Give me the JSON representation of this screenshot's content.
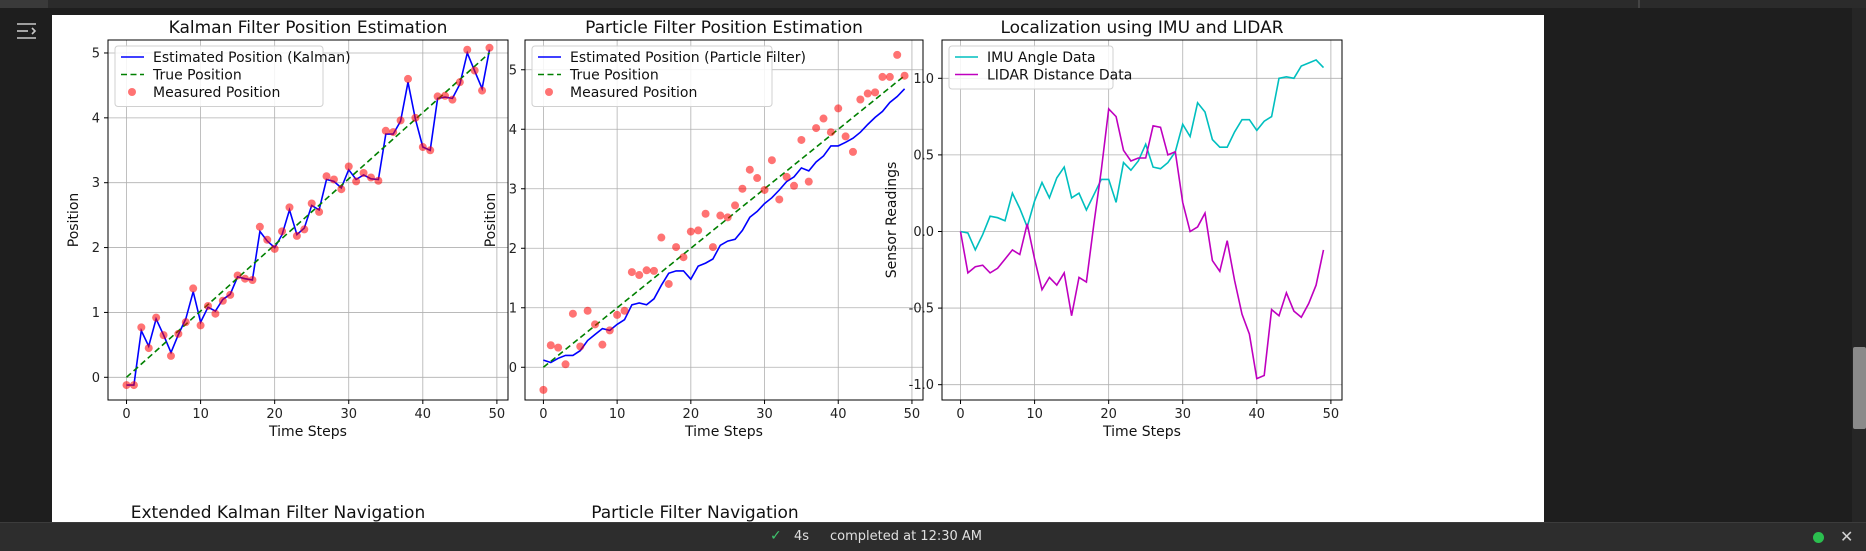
{
  "status": {
    "check_icon": "check-icon",
    "duration": "4s",
    "message": "completed at 12:30 AM",
    "dot_color": "#2bbf4f"
  },
  "colors": {
    "kalman": "#0000ff",
    "true": "#008000",
    "measured": "#ff0000",
    "imu": "#00bfbf",
    "lidar": "#bf00bf"
  },
  "next_titles": [
    "Extended Kalman Filter Navigation",
    "Particle Filter Navigation"
  ],
  "chart_data": [
    {
      "type": "line",
      "title": "Kalman Filter Position Estimation",
      "xlabel": "Time Steps",
      "ylabel": "Position",
      "xlim": [
        -2.5,
        51.5
      ],
      "ylim": [
        -0.35,
        5.2
      ],
      "xticks": [
        0,
        10,
        20,
        30,
        40,
        50
      ],
      "yticks": [
        0,
        1,
        2,
        3,
        4,
        5
      ],
      "grid": true,
      "legend": "top-left",
      "series": [
        {
          "name": "Estimated Position (Kalman)",
          "style": "solid",
          "color": "#0000ff",
          "x": [
            0,
            1,
            2,
            3,
            4,
            5,
            6,
            7,
            8,
            9,
            10,
            11,
            12,
            13,
            14,
            15,
            16,
            17,
            18,
            19,
            20,
            21,
            22,
            23,
            24,
            25,
            26,
            27,
            28,
            29,
            30,
            31,
            32,
            33,
            34,
            35,
            36,
            37,
            38,
            39,
            40,
            41,
            42,
            43,
            44,
            45,
            46,
            47,
            48,
            49
          ],
          "y": [
            -0.12,
            -0.12,
            0.72,
            0.48,
            0.9,
            0.65,
            0.38,
            0.66,
            0.9,
            1.32,
            0.85,
            1.08,
            1.02,
            1.2,
            1.28,
            1.55,
            1.52,
            1.5,
            2.25,
            2.1,
            2.0,
            2.2,
            2.58,
            2.2,
            2.3,
            2.65,
            2.58,
            3.05,
            3.02,
            2.92,
            3.2,
            3.05,
            3.12,
            3.06,
            3.05,
            3.75,
            3.75,
            3.95,
            4.55,
            3.98,
            3.55,
            3.5,
            4.3,
            4.32,
            4.3,
            4.52,
            5.0,
            4.72,
            4.45,
            5.05
          ]
        },
        {
          "name": "True Position",
          "style": "dashed",
          "color": "#008000",
          "x": [
            0,
            49
          ],
          "y": [
            0.0,
            5.0
          ]
        },
        {
          "name": "Measured Position",
          "style": "markers",
          "color": "#ff0000",
          "x": [
            0,
            1,
            2,
            3,
            4,
            5,
            6,
            7,
            8,
            9,
            10,
            11,
            12,
            13,
            14,
            15,
            16,
            17,
            18,
            19,
            20,
            21,
            22,
            23,
            24,
            25,
            26,
            27,
            28,
            29,
            30,
            31,
            32,
            33,
            34,
            35,
            36,
            37,
            38,
            39,
            40,
            41,
            42,
            43,
            44,
            45,
            46,
            47,
            48,
            49
          ],
          "y": [
            -0.12,
            -0.12,
            0.77,
            0.45,
            0.92,
            0.65,
            0.33,
            0.67,
            0.85,
            1.37,
            0.8,
            1.1,
            0.98,
            1.18,
            1.27,
            1.57,
            1.52,
            1.5,
            2.32,
            2.12,
            1.98,
            2.25,
            2.62,
            2.18,
            2.28,
            2.68,
            2.55,
            3.1,
            3.05,
            2.9,
            3.25,
            3.02,
            3.15,
            3.08,
            3.03,
            3.8,
            3.78,
            3.96,
            4.6,
            4.0,
            3.55,
            3.5,
            4.33,
            4.34,
            4.28,
            4.55,
            5.05,
            4.73,
            4.42,
            5.08
          ]
        }
      ]
    },
    {
      "type": "line",
      "title": "Particle Filter Position Estimation",
      "xlabel": "Time Steps",
      "ylabel": "Position",
      "xlim": [
        -2.5,
        51.5
      ],
      "ylim": [
        -0.55,
        5.5
      ],
      "xticks": [
        0,
        10,
        20,
        30,
        40,
        50
      ],
      "yticks": [
        0,
        1,
        2,
        3,
        4,
        5
      ],
      "grid": true,
      "legend": "top-left",
      "series": [
        {
          "name": "Estimated Position (Particle Filter)",
          "style": "solid",
          "color": "#0000ff",
          "x": [
            0,
            1,
            2,
            3,
            4,
            5,
            6,
            7,
            8,
            9,
            10,
            11,
            12,
            13,
            14,
            15,
            16,
            17,
            18,
            19,
            20,
            21,
            22,
            23,
            24,
            25,
            26,
            27,
            28,
            29,
            30,
            31,
            32,
            33,
            34,
            35,
            36,
            37,
            38,
            39,
            40,
            41,
            42,
            43,
            44,
            45,
            46,
            47,
            48,
            49
          ],
          "y": [
            0.12,
            0.08,
            0.15,
            0.2,
            0.2,
            0.28,
            0.45,
            0.55,
            0.65,
            0.62,
            0.72,
            0.8,
            1.05,
            1.08,
            1.05,
            1.15,
            1.38,
            1.58,
            1.62,
            1.62,
            1.48,
            1.7,
            1.75,
            1.82,
            2.05,
            2.12,
            2.15,
            2.3,
            2.52,
            2.62,
            2.75,
            2.85,
            2.98,
            3.12,
            3.2,
            3.35,
            3.3,
            3.45,
            3.55,
            3.72,
            3.72,
            3.78,
            3.85,
            3.95,
            4.08,
            4.2,
            4.3,
            4.45,
            4.55,
            4.68
          ]
        },
        {
          "name": "True Position",
          "style": "dashed",
          "color": "#008000",
          "x": [
            0,
            49
          ],
          "y": [
            0.0,
            4.9
          ]
        },
        {
          "name": "Measured Position",
          "style": "markers",
          "color": "#ff0000",
          "x": [
            0,
            1,
            2,
            3,
            4,
            5,
            6,
            7,
            8,
            9,
            10,
            11,
            12,
            13,
            14,
            15,
            16,
            17,
            18,
            19,
            20,
            21,
            22,
            23,
            24,
            25,
            26,
            27,
            28,
            29,
            30,
            31,
            32,
            33,
            34,
            35,
            36,
            37,
            38,
            39,
            40,
            41,
            42,
            43,
            44,
            45,
            46,
            47,
            48,
            49
          ],
          "y": [
            -0.38,
            0.37,
            0.33,
            0.05,
            0.9,
            0.35,
            0.95,
            0.72,
            0.38,
            0.62,
            0.88,
            0.95,
            1.6,
            1.55,
            1.63,
            1.62,
            2.18,
            1.4,
            2.02,
            1.85,
            2.28,
            2.3,
            2.58,
            2.02,
            2.55,
            2.52,
            2.72,
            3.0,
            3.32,
            3.18,
            2.98,
            3.48,
            2.82,
            3.2,
            3.05,
            3.82,
            3.12,
            4.02,
            4.18,
            3.95,
            4.35,
            3.88,
            3.62,
            4.5,
            4.6,
            4.62,
            4.88,
            4.88,
            5.25,
            4.9
          ]
        }
      ]
    },
    {
      "type": "line",
      "title": "Localization using IMU and LIDAR",
      "xlabel": "Time Steps",
      "ylabel": "Sensor Readings",
      "xlim": [
        -2.5,
        51.5
      ],
      "ylim": [
        -1.1,
        1.25
      ],
      "xticks": [
        0,
        10,
        20,
        30,
        40,
        50
      ],
      "yticks": [
        -1.0,
        -0.5,
        0.0,
        0.5,
        1.0
      ],
      "grid": true,
      "legend": "top-left",
      "series": [
        {
          "name": "IMU Angle Data",
          "style": "solid",
          "color": "#00bfbf",
          "x": [
            0,
            1,
            2,
            3,
            4,
            5,
            6,
            7,
            8,
            9,
            10,
            11,
            12,
            13,
            14,
            15,
            16,
            17,
            18,
            19,
            20,
            21,
            22,
            23,
            24,
            25,
            26,
            27,
            28,
            29,
            30,
            31,
            32,
            33,
            34,
            35,
            36,
            37,
            38,
            39,
            40,
            41,
            42,
            43,
            44,
            45,
            46,
            47,
            48,
            49
          ],
          "y": [
            0.0,
            -0.01,
            -0.12,
            -0.02,
            0.1,
            0.09,
            0.07,
            0.25,
            0.15,
            0.03,
            0.2,
            0.32,
            0.22,
            0.35,
            0.42,
            0.22,
            0.25,
            0.14,
            0.24,
            0.34,
            0.34,
            0.19,
            0.45,
            0.4,
            0.46,
            0.57,
            0.42,
            0.41,
            0.45,
            0.52,
            0.7,
            0.62,
            0.84,
            0.78,
            0.6,
            0.55,
            0.55,
            0.65,
            0.73,
            0.73,
            0.66,
            0.72,
            0.75,
            1.0,
            1.01,
            1.0,
            1.08,
            1.1,
            1.12,
            1.07
          ]
        },
        {
          "name": "LIDAR Distance Data",
          "style": "solid",
          "color": "#bf00bf",
          "x": [
            0,
            1,
            2,
            3,
            4,
            5,
            6,
            7,
            8,
            9,
            10,
            11,
            12,
            13,
            14,
            15,
            16,
            17,
            18,
            19,
            20,
            21,
            22,
            23,
            24,
            25,
            26,
            27,
            28,
            29,
            30,
            31,
            32,
            33,
            34,
            35,
            36,
            37,
            38,
            39,
            40,
            41,
            42,
            43,
            44,
            45,
            46,
            47,
            48,
            49
          ],
          "y": [
            0.0,
            -0.27,
            -0.23,
            -0.22,
            -0.27,
            -0.24,
            -0.18,
            -0.12,
            -0.15,
            0.05,
            -0.18,
            -0.38,
            -0.3,
            -0.35,
            -0.27,
            -0.55,
            -0.3,
            -0.33,
            0.05,
            0.4,
            0.8,
            0.75,
            0.53,
            0.46,
            0.48,
            0.48,
            0.69,
            0.68,
            0.5,
            0.52,
            0.19,
            0.0,
            0.03,
            0.12,
            -0.19,
            -0.26,
            -0.06,
            -0.32,
            -0.54,
            -0.67,
            -0.96,
            -0.94,
            -0.51,
            -0.55,
            -0.4,
            -0.52,
            -0.56,
            -0.47,
            -0.35,
            -0.12
          ]
        }
      ]
    }
  ]
}
